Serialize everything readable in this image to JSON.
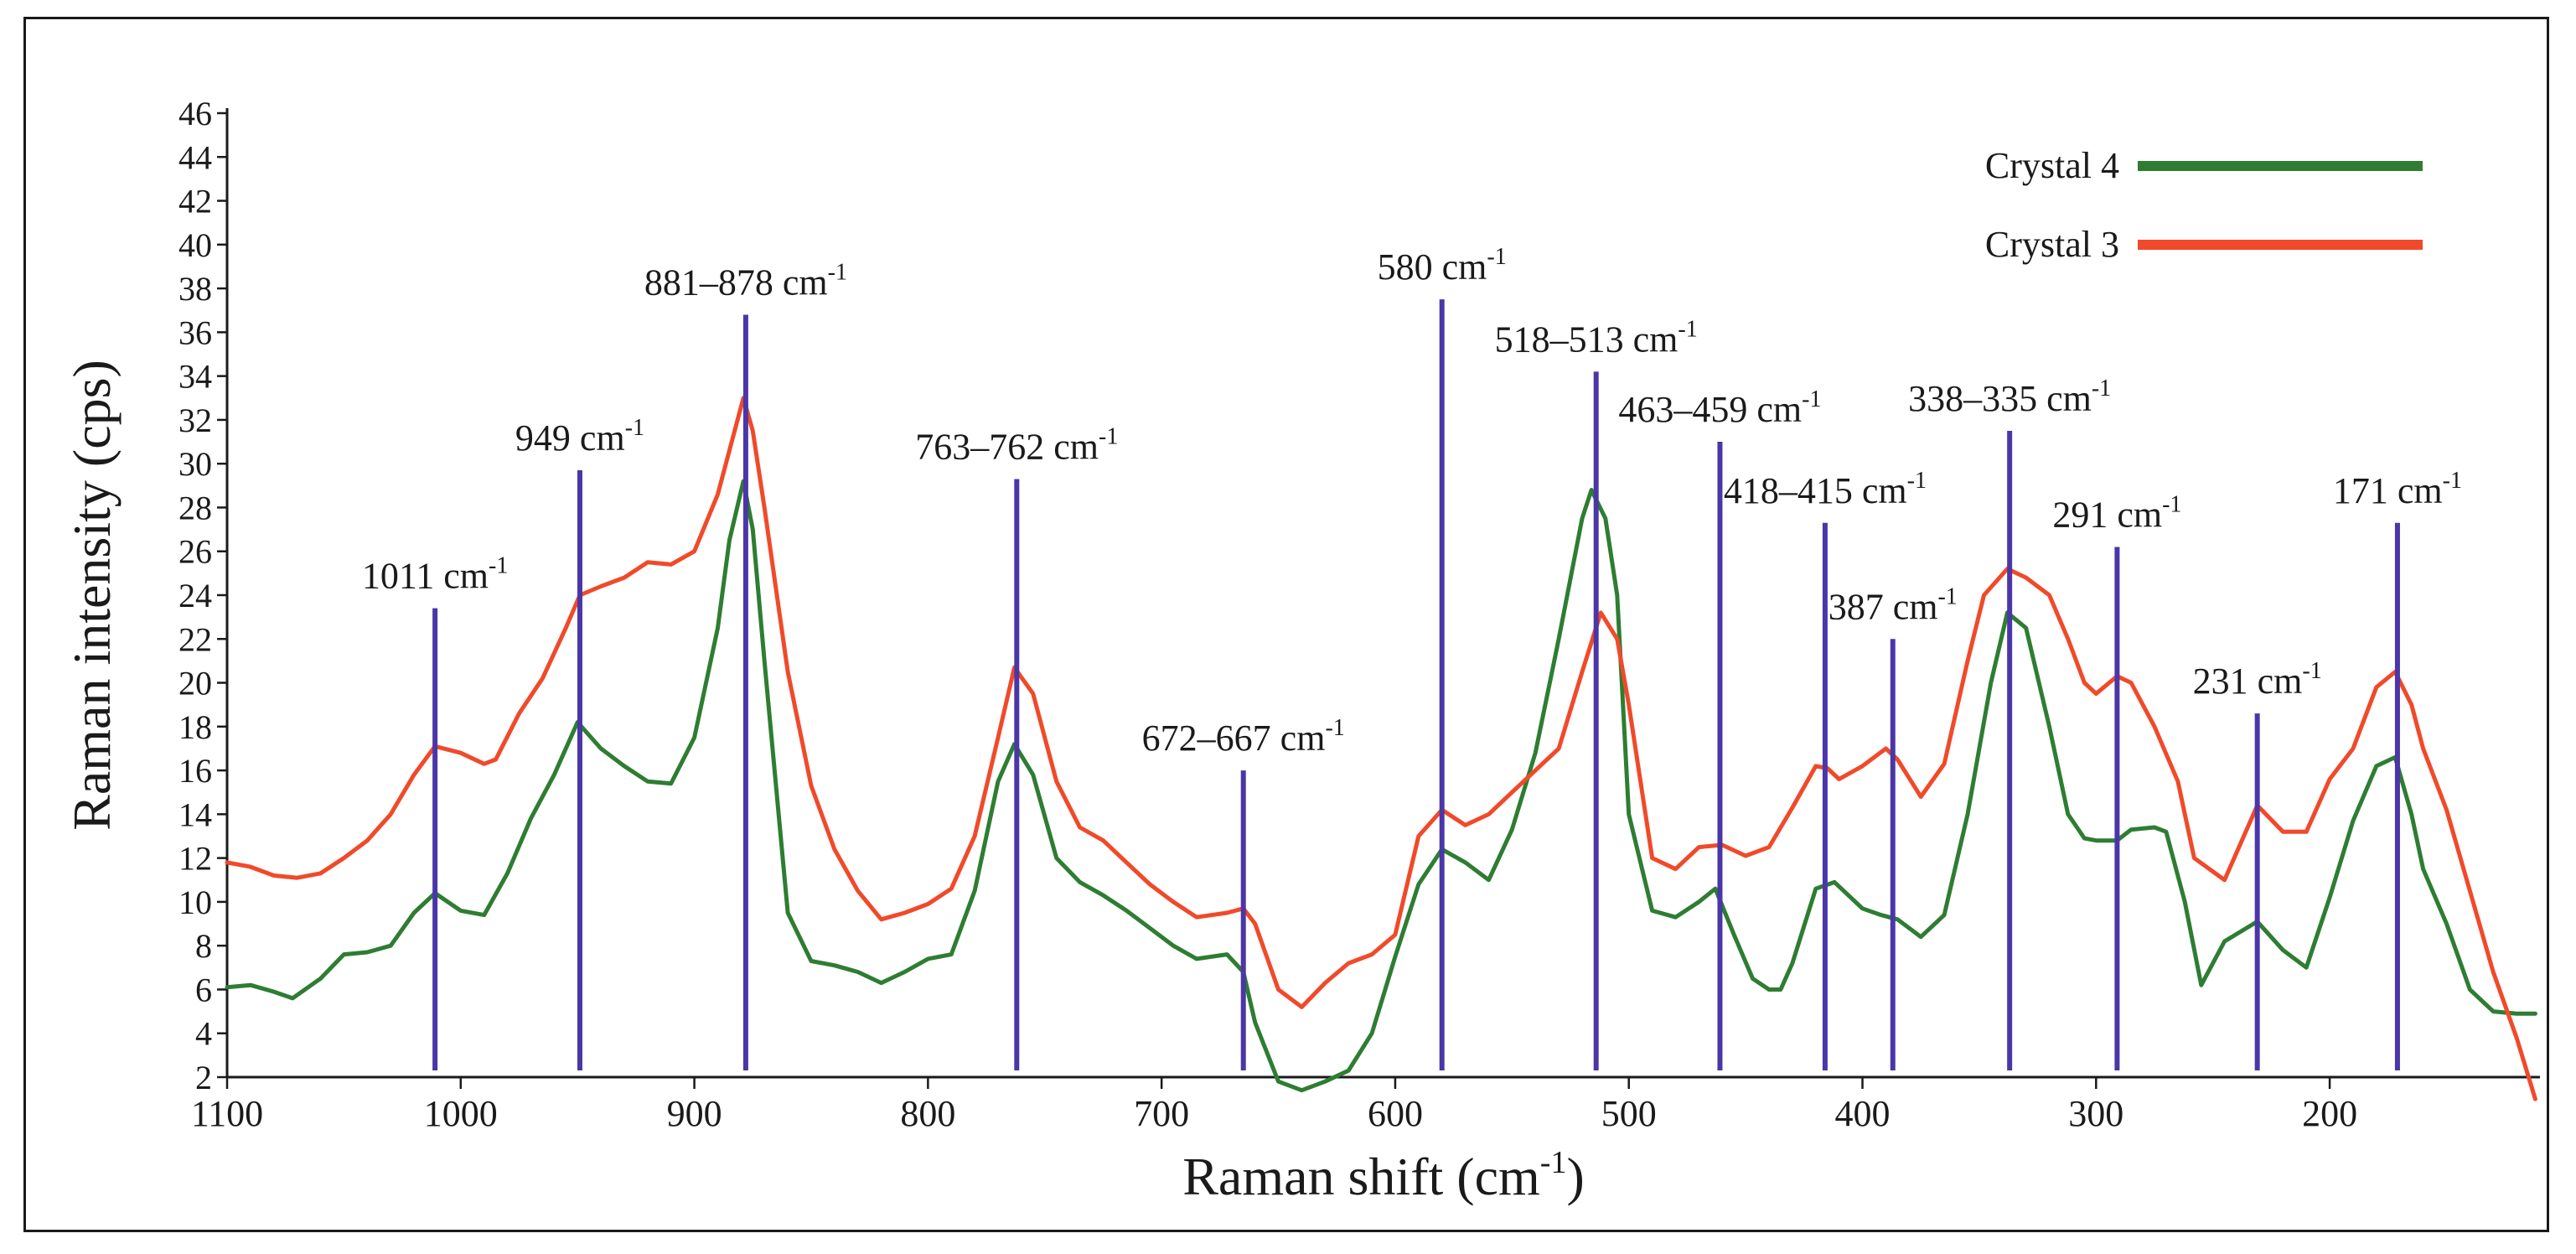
{
  "chart_data": {
    "type": "line",
    "title": "",
    "xlabel": "Raman shift (cm",
    "xlabel_sup": "-1",
    "xlabel_end": ")",
    "ylabel": "Raman intensity (cps)",
    "xlim": [
      1100,
      110
    ],
    "ylim": [
      2,
      46
    ],
    "x_ticks": [
      1100,
      1000,
      900,
      800,
      700,
      600,
      500,
      400,
      300,
      200
    ],
    "x_tick_labels": [
      "1100",
      "1000",
      "900",
      "800",
      "700",
      "600",
      "500",
      "400",
      "300",
      "200"
    ],
    "y_ticks": [
      2,
      4,
      6,
      8,
      10,
      12,
      14,
      16,
      18,
      20,
      22,
      24,
      26,
      28,
      30,
      32,
      34,
      36,
      38,
      40,
      42,
      44,
      46
    ],
    "y_tick_labels": [
      "2",
      "4",
      "6",
      "8",
      "10",
      "12",
      "14",
      "16",
      "18",
      "20",
      "22",
      "24",
      "26",
      "28",
      "30",
      "32",
      "34",
      "36",
      "38",
      "40",
      "42",
      "44",
      "46"
    ],
    "legend_position": "top-right",
    "legend": [
      {
        "name": "Crystal 4",
        "color": "#2e7d32"
      },
      {
        "name": "Crystal 3",
        "color": "#f04a2a"
      }
    ],
    "series": [
      {
        "name": "Crystal 4",
        "color": "#2e7d32",
        "x": [
          1100,
          1090,
          1080,
          1072,
          1060,
          1050,
          1040,
          1030,
          1020,
          1011,
          1000,
          990,
          980,
          970,
          960,
          950,
          940,
          930,
          920,
          910,
          900,
          890,
          885,
          879,
          875,
          870,
          860,
          850,
          840,
          830,
          820,
          810,
          800,
          790,
          780,
          770,
          763,
          755,
          745,
          735,
          725,
          715,
          705,
          695,
          685,
          672,
          665,
          660,
          650,
          640,
          630,
          620,
          610,
          600,
          590,
          580,
          570,
          560,
          550,
          540,
          530,
          520,
          516,
          510,
          505,
          500,
          490,
          480,
          470,
          463,
          455,
          447,
          440,
          435,
          430,
          420,
          412,
          400,
          392,
          385,
          375,
          365,
          355,
          345,
          338,
          330,
          320,
          312,
          305,
          300,
          291,
          285,
          275,
          270,
          262,
          255,
          245,
          231,
          220,
          210,
          200,
          190,
          180,
          172,
          165,
          160,
          150,
          140,
          130,
          120,
          112
        ],
        "values": [
          6.1,
          6.2,
          5.9,
          5.6,
          6.5,
          7.6,
          7.7,
          8.0,
          9.5,
          10.4,
          9.6,
          9.4,
          11.3,
          13.8,
          15.8,
          18.2,
          17.0,
          16.2,
          15.5,
          15.4,
          17.5,
          22.5,
          26.5,
          29.2,
          27.0,
          21.0,
          9.5,
          7.3,
          7.1,
          6.8,
          6.3,
          6.8,
          7.4,
          7.6,
          10.5,
          15.5,
          17.2,
          15.8,
          12.0,
          10.9,
          10.3,
          9.6,
          8.8,
          8.0,
          7.4,
          7.6,
          6.8,
          4.5,
          1.8,
          1.4,
          1.8,
          2.3,
          4.0,
          7.5,
          10.8,
          12.4,
          11.8,
          11.0,
          13.3,
          16.8,
          22.0,
          27.5,
          28.8,
          27.5,
          24.0,
          14.0,
          9.6,
          9.3,
          10.0,
          10.6,
          8.5,
          6.5,
          6.0,
          6.0,
          7.2,
          10.6,
          10.9,
          9.7,
          9.4,
          9.2,
          8.4,
          9.4,
          14.0,
          20.0,
          23.2,
          22.5,
          18.0,
          14.0,
          12.9,
          12.8,
          12.8,
          13.3,
          13.4,
          13.2,
          10.0,
          6.2,
          8.2,
          9.1,
          7.8,
          7.0,
          10.2,
          13.7,
          16.2,
          16.6,
          14.0,
          11.5,
          9.0,
          6.0,
          5.0,
          4.9,
          4.9
        ]
      },
      {
        "name": "Crystal 3",
        "color": "#f04a2a",
        "x": [
          1100,
          1090,
          1080,
          1070,
          1060,
          1050,
          1040,
          1030,
          1020,
          1011,
          1000,
          990,
          985,
          975,
          965,
          955,
          949,
          940,
          930,
          920,
          910,
          900,
          890,
          885,
          879,
          875,
          870,
          860,
          850,
          840,
          830,
          820,
          810,
          800,
          790,
          780,
          770,
          763,
          755,
          745,
          735,
          725,
          715,
          705,
          695,
          685,
          672,
          665,
          660,
          650,
          640,
          630,
          620,
          610,
          600,
          590,
          580,
          570,
          560,
          550,
          540,
          530,
          520,
          512,
          505,
          500,
          490,
          480,
          470,
          460,
          450,
          440,
          430,
          420,
          415,
          410,
          400,
          390,
          385,
          375,
          365,
          355,
          348,
          338,
          330,
          320,
          312,
          305,
          300,
          291,
          285,
          275,
          265,
          258,
          245,
          231,
          220,
          210,
          200,
          190,
          180,
          172,
          165,
          160,
          150,
          140,
          130,
          120,
          112
        ],
        "values": [
          11.8,
          11.6,
          11.2,
          11.1,
          11.3,
          12.0,
          12.8,
          14.0,
          15.8,
          17.1,
          16.8,
          16.3,
          16.5,
          18.6,
          20.2,
          22.5,
          24.0,
          24.4,
          24.8,
          25.5,
          25.4,
          26.0,
          28.6,
          30.6,
          33.0,
          31.5,
          28.0,
          20.5,
          15.3,
          12.4,
          10.5,
          9.2,
          9.5,
          9.9,
          10.6,
          13.0,
          17.5,
          20.7,
          19.5,
          15.5,
          13.4,
          12.8,
          11.8,
          10.8,
          10.0,
          9.3,
          9.5,
          9.7,
          9.0,
          6.0,
          5.2,
          6.3,
          7.2,
          7.6,
          8.5,
          13.0,
          14.2,
          13.5,
          14.0,
          15.0,
          16.0,
          17.0,
          20.5,
          23.2,
          22.0,
          19.0,
          12.0,
          11.5,
          12.5,
          12.6,
          12.1,
          12.5,
          14.3,
          16.2,
          16.1,
          15.6,
          16.2,
          17.0,
          16.5,
          14.8,
          16.3,
          21.0,
          24.0,
          25.2,
          24.8,
          24.0,
          22.0,
          20.0,
          19.5,
          20.3,
          20.0,
          18.0,
          15.5,
          12.0,
          11.0,
          14.4,
          13.2,
          13.2,
          15.6,
          17.0,
          19.8,
          20.5,
          19.0,
          17.0,
          14.2,
          10.5,
          6.8,
          3.8,
          1.0
        ]
      }
    ],
    "peak_markers": [
      {
        "x": 1011,
        "top": 23.4,
        "label": "1011 cm",
        "sup": "-1"
      },
      {
        "x": 949,
        "top": 29.7,
        "label": "949 cm",
        "sup": "-1"
      },
      {
        "x": 878,
        "top": 36.8,
        "label": "881–878 cm",
        "sup": "-1"
      },
      {
        "x": 762,
        "top": 29.3,
        "label": "763–762 cm",
        "sup": "-1"
      },
      {
        "x": 665,
        "top": 16.0,
        "label": "672–667 cm",
        "sup": "-1"
      },
      {
        "x": 580,
        "top": 37.5,
        "label": "580 cm",
        "sup": "-1"
      },
      {
        "x": 514,
        "top": 34.2,
        "label": "518–513 cm",
        "sup": "-1"
      },
      {
        "x": 461,
        "top": 31.0,
        "label": "463–459 cm",
        "sup": "-1"
      },
      {
        "x": 416,
        "top": 27.3,
        "label": "418–415 cm",
        "sup": "-1"
      },
      {
        "x": 387,
        "top": 22.0,
        "label": "387 cm",
        "sup": "-1"
      },
      {
        "x": 337,
        "top": 31.5,
        "label": "338–335 cm",
        "sup": "-1"
      },
      {
        "x": 291,
        "top": 26.2,
        "label": "291 cm",
        "sup": "-1"
      },
      {
        "x": 231,
        "top": 18.6,
        "label": "231 cm",
        "sup": "-1"
      },
      {
        "x": 171,
        "top": 27.3,
        "label": "171 cm",
        "sup": "-1"
      }
    ],
    "marker_color": "#4b36a8"
  }
}
